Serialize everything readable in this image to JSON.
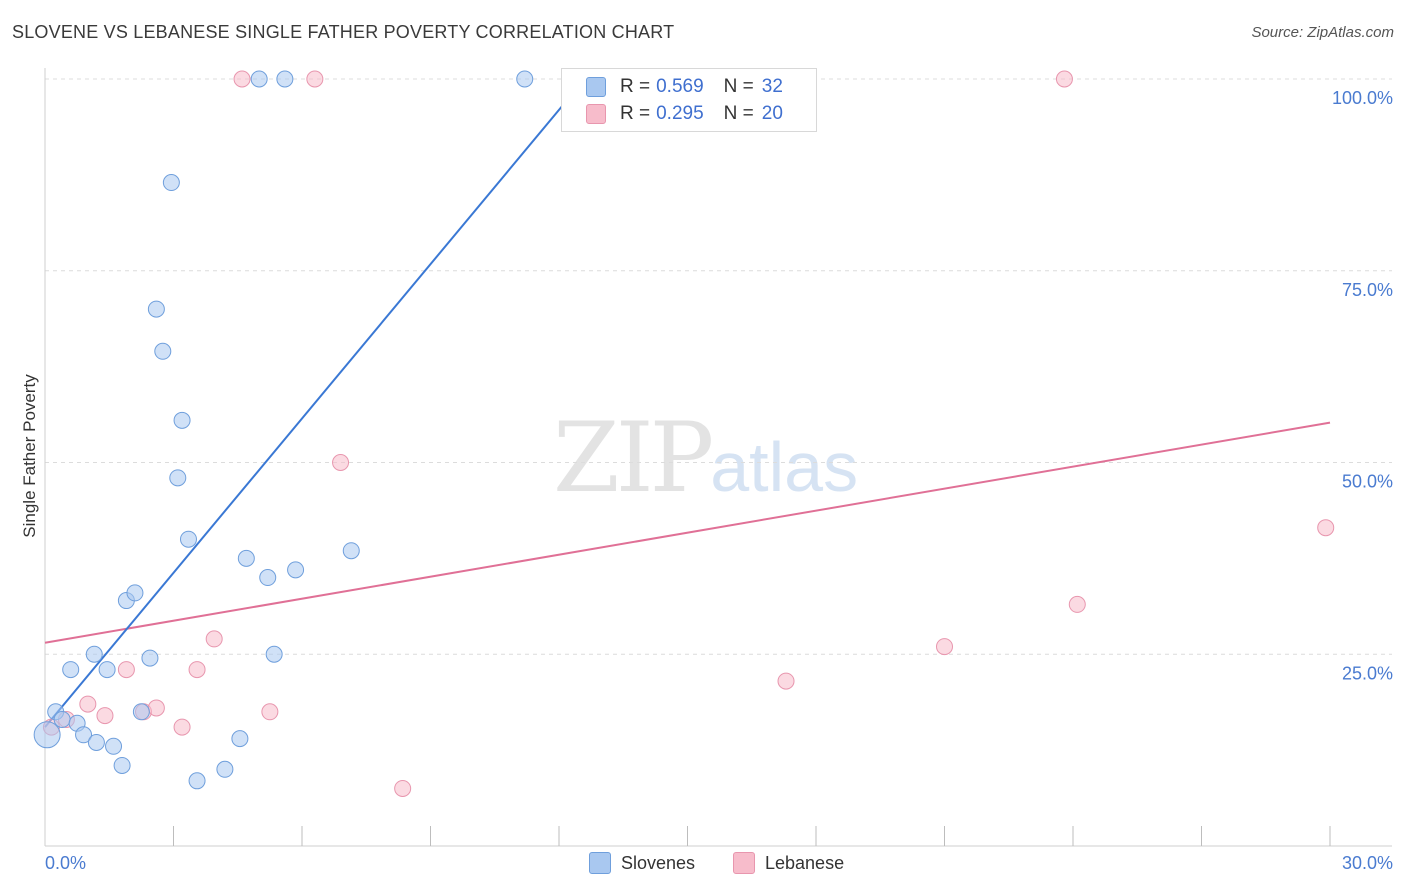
{
  "title": "SLOVENE VS LEBANESE SINGLE FATHER POVERTY CORRELATION CHART",
  "source": "Source: ZipAtlas.com",
  "watermark": {
    "zip": "ZIP",
    "atlas": "atlas"
  },
  "legend": {
    "rows": [
      {
        "r_label": "R =",
        "r_value": "0.569",
        "n_label": "N =",
        "n_value": "32"
      },
      {
        "r_label": "R =",
        "r_value": "0.295",
        "n_label": "N =",
        "n_value": "20"
      }
    ]
  },
  "bottom_legend": {
    "slovenes": "Slovenes",
    "lebanese": "Lebanese"
  },
  "colors": {
    "slovenes_fill": "#a9c8f0",
    "slovenes_stroke": "#6f9fdc",
    "slovenes_line": "#3a78d4",
    "lebanese_fill": "#f7bccb",
    "lebanese_stroke": "#e896ae",
    "lebanese_line": "#e07096",
    "grid": "#dcdcdc",
    "tick_text": "#4a7bd0"
  },
  "chart_data": {
    "type": "scatter",
    "title": "SLOVENE VS LEBANESE SINGLE FATHER POVERTY CORRELATION CHART",
    "xlabel": "",
    "ylabel": "Single Father Poverty",
    "xlim": [
      0,
      30
    ],
    "ylim": [
      0,
      100
    ],
    "x_tick_labels": [
      "0.0%",
      "30.0%"
    ],
    "y_ticks": [
      25,
      50,
      75,
      100
    ],
    "y_tick_labels": [
      "25.0%",
      "50.0%",
      "75.0%",
      "100.0%"
    ],
    "series": [
      {
        "name": "Slovenes",
        "R": 0.569,
        "N": 32,
        "trend": {
          "x": [
            0,
            12.6
          ],
          "y": [
            15.5,
            100
          ]
        },
        "points": [
          {
            "x": 0.05,
            "y": 14.5,
            "big": true
          },
          {
            "x": 0.25,
            "y": 17.5
          },
          {
            "x": 0.4,
            "y": 16.5
          },
          {
            "x": 0.6,
            "y": 23
          },
          {
            "x": 0.75,
            "y": 16
          },
          {
            "x": 0.9,
            "y": 14.5
          },
          {
            "x": 1.2,
            "y": 13.5
          },
          {
            "x": 1.15,
            "y": 25
          },
          {
            "x": 1.45,
            "y": 23
          },
          {
            "x": 1.6,
            "y": 13
          },
          {
            "x": 1.8,
            "y": 10.5
          },
          {
            "x": 1.9,
            "y": 32
          },
          {
            "x": 2.1,
            "y": 33
          },
          {
            "x": 2.25,
            "y": 17.5
          },
          {
            "x": 2.45,
            "y": 24.5
          },
          {
            "x": 2.6,
            "y": 70
          },
          {
            "x": 2.75,
            "y": 64.5
          },
          {
            "x": 2.95,
            "y": 86.5
          },
          {
            "x": 3.1,
            "y": 48
          },
          {
            "x": 3.2,
            "y": 55.5
          },
          {
            "x": 3.35,
            "y": 40
          },
          {
            "x": 3.55,
            "y": 8.5
          },
          {
            "x": 4.2,
            "y": 10
          },
          {
            "x": 4.55,
            "y": 14
          },
          {
            "x": 4.7,
            "y": 37.5
          },
          {
            "x": 5.0,
            "y": 102
          },
          {
            "x": 5.2,
            "y": 35
          },
          {
            "x": 5.35,
            "y": 25
          },
          {
            "x": 5.6,
            "y": 102
          },
          {
            "x": 5.85,
            "y": 36
          },
          {
            "x": 7.15,
            "y": 38.5
          },
          {
            "x": 11.2,
            "y": 102
          }
        ]
      },
      {
        "name": "Lebanese",
        "R": 0.295,
        "N": 20,
        "trend": {
          "x": [
            0,
            30
          ],
          "y": [
            26.5,
            55.2
          ]
        },
        "points": [
          {
            "x": 0.15,
            "y": 15.5
          },
          {
            "x": 0.5,
            "y": 16.5
          },
          {
            "x": 1.0,
            "y": 18.5
          },
          {
            "x": 1.4,
            "y": 17
          },
          {
            "x": 1.9,
            "y": 23
          },
          {
            "x": 2.3,
            "y": 17.5
          },
          {
            "x": 2.6,
            "y": 18
          },
          {
            "x": 3.2,
            "y": 15.5
          },
          {
            "x": 3.55,
            "y": 23
          },
          {
            "x": 3.95,
            "y": 27
          },
          {
            "x": 4.6,
            "y": 102
          },
          {
            "x": 5.25,
            "y": 17.5
          },
          {
            "x": 6.3,
            "y": 102
          },
          {
            "x": 6.9,
            "y": 50
          },
          {
            "x": 8.35,
            "y": 7.5
          },
          {
            "x": 17.3,
            "y": 21.5
          },
          {
            "x": 21.0,
            "y": 26
          },
          {
            "x": 23.8,
            "y": 102
          },
          {
            "x": 24.1,
            "y": 31.5
          },
          {
            "x": 29.9,
            "y": 41.5
          }
        ]
      }
    ]
  }
}
